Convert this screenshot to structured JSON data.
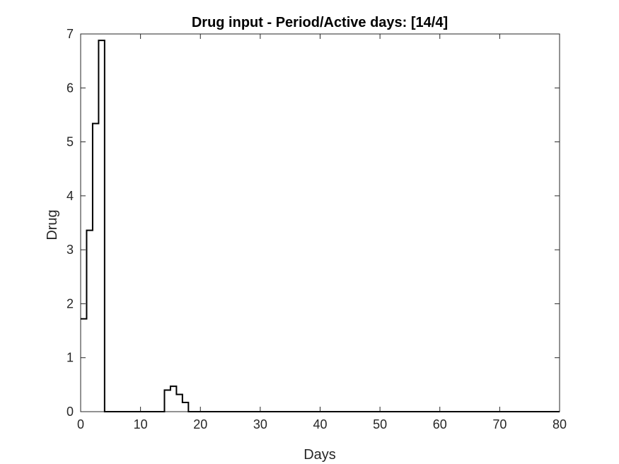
{
  "chart_data": {
    "type": "line",
    "title": "Drug input - Period/Active days: [14/4]",
    "xlabel": "Days",
    "ylabel": "Drug",
    "xlim": [
      0,
      80
    ],
    "ylim": [
      0,
      7
    ],
    "xticks": [
      0,
      10,
      20,
      30,
      40,
      50,
      60,
      70,
      80
    ],
    "yticks": [
      0,
      1,
      2,
      3,
      4,
      5,
      6,
      7
    ],
    "grid": false,
    "line_color": "#000000",
    "series": [
      {
        "style": "stairs",
        "x": [
          0,
          1,
          2,
          3,
          4,
          5,
          6,
          7,
          8,
          9,
          10,
          11,
          12,
          13,
          14,
          15,
          16,
          17,
          18,
          19,
          20,
          21,
          22,
          23,
          24,
          25,
          26,
          27,
          28,
          29,
          30,
          31,
          32,
          33,
          34,
          35,
          36,
          37,
          38,
          39,
          40,
          41,
          42,
          43,
          44,
          45,
          46,
          47,
          48,
          49,
          50,
          51,
          52,
          53,
          54,
          55,
          56,
          57,
          58,
          59,
          60,
          61,
          62,
          63,
          64,
          65,
          66,
          67,
          68,
          69,
          70,
          71,
          72,
          73,
          74,
          75,
          76,
          77,
          78,
          79,
          80
        ],
        "y": [
          1.72,
          3.36,
          5.34,
          6.88,
          0,
          0,
          0,
          0,
          0,
          0,
          0,
          0,
          0,
          0,
          0.4,
          0.47,
          0.32,
          0.17,
          0,
          0,
          0,
          0,
          0,
          0,
          0,
          0,
          0,
          0,
          0,
          0,
          0,
          0,
          0,
          0,
          0,
          0,
          0,
          0,
          0,
          0,
          0,
          0,
          0,
          0,
          0,
          0,
          0,
          0,
          0,
          0,
          0,
          0,
          0,
          0,
          0,
          0,
          0,
          0,
          0,
          0,
          0,
          0,
          0,
          0,
          0,
          0,
          0,
          0,
          0,
          0,
          0,
          0,
          0,
          0,
          0,
          0,
          0,
          0,
          0,
          0,
          0
        ]
      }
    ]
  }
}
